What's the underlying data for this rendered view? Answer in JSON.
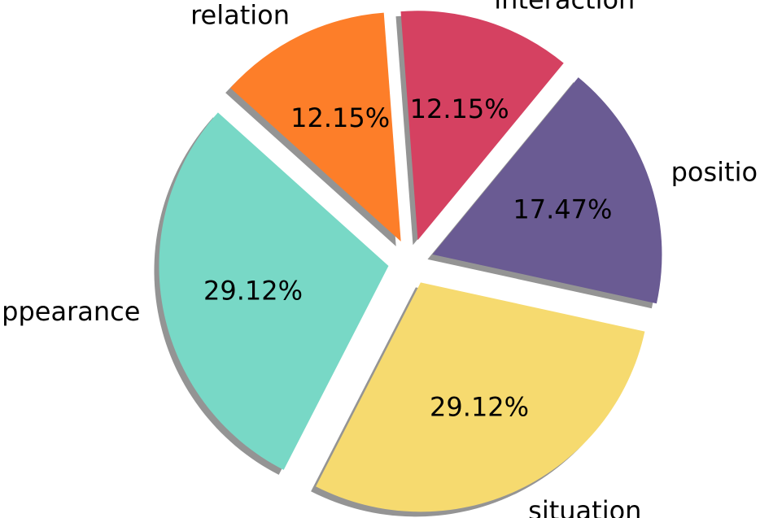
{
  "chart_data": {
    "type": "pie",
    "title": "",
    "slices": [
      {
        "label": "appearance",
        "value": 29.12,
        "pct_label": "29.12%",
        "color": "#78d8c6"
      },
      {
        "label": "situation",
        "value": 29.12,
        "pct_label": "29.12%",
        "color": "#f6da6f"
      },
      {
        "label": "position",
        "value": 17.47,
        "pct_label": "17.47%",
        "color": "#6a5b93"
      },
      {
        "label": "interaction",
        "value": 12.15,
        "pct_label": "12.15%",
        "color": "#d54161"
      },
      {
        "label": "relation",
        "value": 12.15,
        "pct_label": "12.15%",
        "color": "#fd7e29"
      }
    ],
    "exploded": true,
    "shadow": true
  }
}
